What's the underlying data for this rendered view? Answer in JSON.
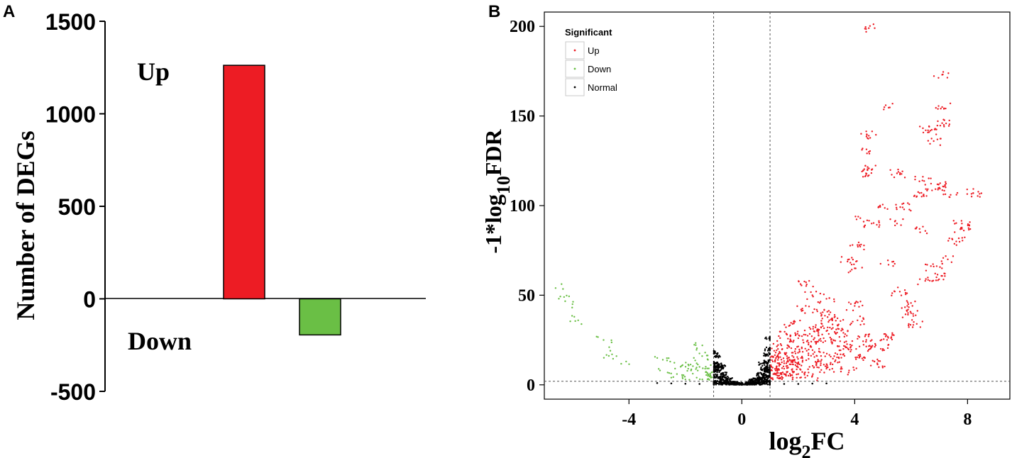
{
  "panels": {
    "a_label": "A",
    "b_label": "B"
  },
  "colors": {
    "up": "#ed1c24",
    "down": "#6abf45",
    "normal": "#000000",
    "axis": "#000000",
    "guide": "#555555"
  },
  "chart_data": [
    {
      "type": "bar",
      "ylabel": "Number of DEGs",
      "ylim": [
        -500,
        1500
      ],
      "yticks": [
        1500,
        1000,
        500,
        0,
        -500
      ],
      "categories": [
        "Up",
        "Down"
      ],
      "values": [
        1262,
        -195
      ],
      "bar_colors": [
        "#ed1c24",
        "#6abf45"
      ],
      "labels": {
        "up": "Up",
        "down": "Down"
      }
    },
    {
      "type": "scatter",
      "xlabel_main": "log",
      "xlabel_sub": "2",
      "xlabel_tail": "FC",
      "ylabel_main": "-1*log",
      "ylabel_sub": "10",
      "ylabel_tail": "FDR",
      "xlim": [
        -7,
        9.5
      ],
      "ylim": [
        -8,
        208
      ],
      "xticks": [
        -4,
        0,
        4,
        8
      ],
      "yticks": [
        0,
        50,
        100,
        150,
        200
      ],
      "thresholds": {
        "x": [
          -1,
          1
        ],
        "y": 2
      },
      "legend": {
        "title": "Significant",
        "position": "top-left",
        "entries": [
          "Up",
          "Down",
          "Normal"
        ]
      },
      "series": [
        {
          "name": "Up",
          "color": "#ed1c24",
          "points": [
            [
              4.5,
              199
            ],
            [
              7.1,
              173
            ],
            [
              7.1,
              155
            ],
            [
              5.1,
              156
            ],
            [
              7.1,
              146
            ],
            [
              4.5,
              139
            ],
            [
              6.8,
              136
            ],
            [
              4.5,
              130
            ],
            [
              6.6,
              142
            ],
            [
              4.6,
              120
            ],
            [
              4.4,
              118
            ],
            [
              5.5,
              118
            ],
            [
              6.4,
              114
            ],
            [
              7.2,
              111
            ],
            [
              7.0,
              110
            ],
            [
              8.2,
              107
            ],
            [
              6.3,
              107
            ],
            [
              7.4,
              106
            ],
            [
              5.7,
              99
            ],
            [
              4.9,
              100
            ],
            [
              7.8,
              90
            ],
            [
              4.2,
              93
            ],
            [
              7.8,
              87
            ],
            [
              6.3,
              87
            ],
            [
              4.6,
              90
            ],
            [
              5.5,
              90
            ],
            [
              7.6,
              80
            ],
            [
              4.1,
              78
            ],
            [
              3.8,
              70
            ],
            [
              6.8,
              66
            ],
            [
              4.0,
              65
            ],
            [
              5.2,
              67
            ],
            [
              6.5,
              58
            ],
            [
              2.3,
              56
            ],
            [
              2.5,
              50
            ],
            [
              3.0,
              48
            ],
            [
              5.9,
              45
            ],
            [
              2.1,
              42
            ],
            [
              2.8,
              40
            ],
            [
              3.3,
              38
            ],
            [
              4.1,
              36
            ],
            [
              6.2,
              34
            ],
            [
              1.8,
              34
            ],
            [
              2.4,
              32
            ],
            [
              3.0,
              30
            ],
            [
              3.6,
              29
            ],
            [
              4.4,
              28
            ],
            [
              5.1,
              27
            ],
            [
              1.6,
              28
            ],
            [
              2.0,
              26
            ],
            [
              2.6,
              24
            ],
            [
              3.2,
              23
            ],
            [
              3.9,
              22
            ],
            [
              4.6,
              21
            ],
            [
              1.4,
              22
            ],
            [
              1.9,
              20
            ],
            [
              2.3,
              19
            ],
            [
              2.9,
              18
            ],
            [
              3.5,
              17
            ],
            [
              4.2,
              16
            ],
            [
              5.0,
              20
            ],
            [
              1.2,
              18
            ],
            [
              1.6,
              16
            ],
            [
              2.1,
              15
            ],
            [
              2.7,
              14
            ],
            [
              3.3,
              13
            ],
            [
              1.1,
              13
            ],
            [
              1.5,
              12
            ],
            [
              1.9,
              11
            ],
            [
              2.4,
              10
            ],
            [
              3.0,
              9
            ],
            [
              1.2,
              8
            ],
            [
              1.6,
              7
            ],
            [
              2.0,
              6
            ],
            [
              1.3,
              5
            ],
            [
              1.8,
              4
            ],
            [
              1.1,
              3
            ],
            [
              2.5,
              5
            ],
            [
              3.8,
              8
            ],
            [
              4.8,
              12
            ],
            [
              1.05,
              10
            ],
            [
              1.3,
              15
            ],
            [
              2.2,
              28
            ],
            [
              2.7,
              31
            ],
            [
              3.4,
              33
            ],
            [
              1.7,
              24
            ],
            [
              2.9,
              26
            ],
            [
              4.0,
              44
            ],
            [
              5.6,
              52
            ],
            [
              6.9,
              60
            ],
            [
              1.5,
              9
            ],
            [
              2.8,
              12
            ],
            [
              3.6,
              20
            ],
            [
              4.4,
              24
            ],
            [
              6.0,
              40
            ],
            [
              7.3,
              70
            ],
            [
              3.1,
              36
            ],
            [
              2.0,
              12
            ],
            [
              1.4,
              6
            ],
            [
              1.7,
              14
            ]
          ]
        },
        {
          "name": "Down",
          "color": "#6abf45",
          "points": [
            [
              -6.6,
              54
            ],
            [
              -6.3,
              49
            ],
            [
              -6.0,
              45
            ],
            [
              -5.8,
              36
            ],
            [
              -4.9,
              25
            ],
            [
              -4.7,
              21
            ],
            [
              -4.6,
              17
            ],
            [
              -4.1,
              13
            ],
            [
              -2.8,
              14
            ],
            [
              -2.9,
              8
            ],
            [
              -2.3,
              6
            ],
            [
              -2.1,
              11
            ],
            [
              -1.8,
              8
            ],
            [
              -1.7,
              15
            ],
            [
              -1.6,
              12
            ],
            [
              -1.5,
              10
            ],
            [
              -1.4,
              22
            ],
            [
              -1.3,
              9
            ],
            [
              -1.3,
              18
            ],
            [
              -1.2,
              5
            ],
            [
              -1.2,
              14
            ],
            [
              -1.1,
              4
            ],
            [
              -1.1,
              11
            ],
            [
              -1.05,
              7
            ],
            [
              -2.5,
              4
            ],
            [
              -2.0,
              3
            ],
            [
              -1.6,
              4
            ],
            [
              -1.4,
              3
            ],
            [
              -1.9,
              9
            ],
            [
              -1.2,
              6
            ]
          ]
        },
        {
          "name": "Normal",
          "color": "#000000",
          "points": [
            [
              0,
              0
            ],
            [
              0.1,
              0.2
            ],
            [
              -0.1,
              0.2
            ],
            [
              0.2,
              0.5
            ],
            [
              -0.2,
              0.5
            ],
            [
              0.3,
              1
            ],
            [
              -0.3,
              1
            ],
            [
              0.4,
              2
            ],
            [
              -0.4,
              2
            ],
            [
              0.5,
              3
            ],
            [
              -0.5,
              3
            ],
            [
              0.6,
              4
            ],
            [
              -0.6,
              4
            ],
            [
              0.7,
              6
            ],
            [
              -0.7,
              6
            ],
            [
              0.8,
              8
            ],
            [
              -0.8,
              8
            ],
            [
              0.9,
              10
            ],
            [
              -0.9,
              10
            ],
            [
              0.95,
              13
            ],
            [
              -0.95,
              12
            ],
            [
              0.9,
              17
            ],
            [
              -0.9,
              16
            ],
            [
              0.5,
              1
            ],
            [
              -0.5,
              1
            ],
            [
              0.6,
              2
            ],
            [
              -0.6,
              2
            ],
            [
              0.7,
              3
            ],
            [
              -0.7,
              3
            ],
            [
              0.8,
              4
            ],
            [
              -0.8,
              4
            ],
            [
              0.9,
              5
            ],
            [
              -0.9,
              5
            ],
            [
              0.95,
              7
            ],
            [
              -0.95,
              8
            ],
            [
              0.85,
              9
            ],
            [
              -0.85,
              11
            ],
            [
              0.75,
              12
            ],
            [
              -0.75,
              10
            ],
            [
              0.95,
              20
            ],
            [
              -0.98,
              18
            ],
            [
              0.98,
              26
            ],
            [
              0.2,
              0.1
            ],
            [
              -0.2,
              0.1
            ],
            [
              0.4,
              0.3
            ],
            [
              -0.4,
              0.3
            ],
            [
              0.6,
              0.6
            ],
            [
              -0.6,
              0.6
            ],
            [
              0.8,
              1
            ],
            [
              -0.8,
              1
            ],
            [
              0.9,
              1.5
            ],
            [
              -0.9,
              1.5
            ],
            [
              1.5,
              0.5
            ],
            [
              2.0,
              0.5
            ],
            [
              2.5,
              0.7
            ],
            [
              3.0,
              0.8
            ],
            [
              -1.5,
              0.5
            ],
            [
              -2.0,
              0.6
            ],
            [
              -2.5,
              0.8
            ],
            [
              -3.0,
              1
            ],
            [
              0.3,
              0.5
            ],
            [
              -0.3,
              0.5
            ]
          ]
        }
      ]
    }
  ]
}
